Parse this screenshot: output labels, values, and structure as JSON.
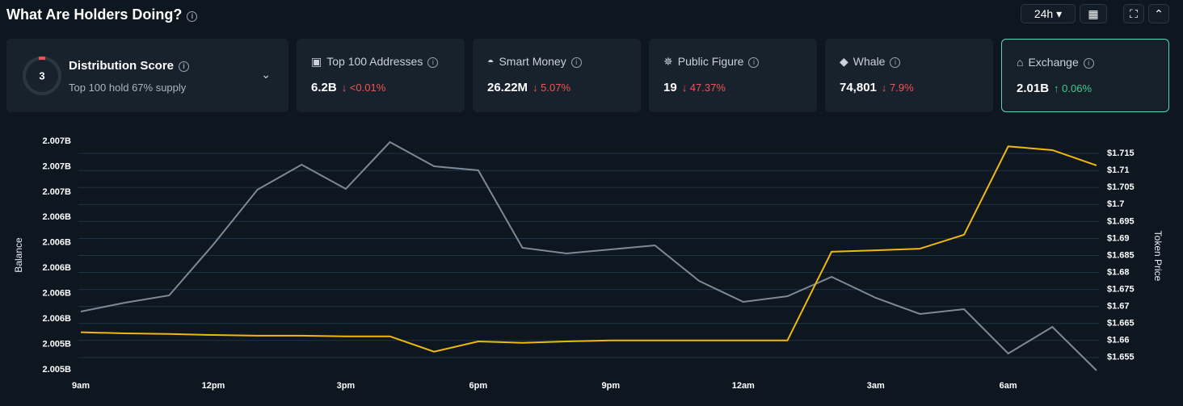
{
  "header": {
    "title": "What Are Holders Doing?",
    "range": "24h"
  },
  "distribution": {
    "score": "3",
    "title": "Distribution Score",
    "subtitle": "Top 100 hold 67% supply"
  },
  "cards": [
    {
      "icon": "▣",
      "label": "Top 100 Addresses",
      "value": "6.2B",
      "change": "↓ <0.01%",
      "trend": "down"
    },
    {
      "icon": "◓",
      "label": "Smart Money",
      "value": "26.22M",
      "change": "↓ 5.07%",
      "trend": "down"
    },
    {
      "icon": "✵",
      "label": "Public Figure",
      "value": "19",
      "change": "↓ 47.37%",
      "trend": "down"
    },
    {
      "icon": "◆",
      "label": "Whale",
      "value": "74,801",
      "change": "↓ 7.9%",
      "trend": "down"
    },
    {
      "icon": "⌂",
      "label": "Exchange",
      "value": "2.01B",
      "change": "↑ 0.06%",
      "trend": "up",
      "selected": true
    }
  ],
  "chart_data": {
    "type": "line",
    "y_label": "Balance",
    "y2_label": "Token Price",
    "categories": [
      "9am",
      null,
      null,
      "12pm",
      null,
      null,
      "3pm",
      null,
      null,
      "6pm",
      null,
      null,
      "9pm",
      null,
      null,
      "12am",
      null,
      null,
      "3am",
      null,
      null,
      "6am",
      null,
      null
    ],
    "series": [
      {
        "name": "Balance",
        "color": "#7d8a96",
        "values": [
          2005708000,
          2005777900,
          2005835200,
          2006235900,
          2006668400,
          2006865500,
          2006674700,
          2007043600,
          2006852800,
          2006821000,
          2006210400,
          2006165900,
          2006197700,
          2006229500,
          2005949600,
          2005784300,
          2005828800,
          2005981400,
          2005816100,
          2005688900,
          2005727000,
          2005377200,
          2005587100,
          2005243600
        ]
      },
      {
        "name": "Token Price",
        "color": "#f0b90b",
        "axis": "y2",
        "values": [
          1.6624,
          1.6621,
          1.6619,
          1.6616,
          1.6614,
          1.6614,
          1.6612,
          1.6612,
          1.6567,
          1.6597,
          1.6593,
          1.6597,
          1.66,
          1.66,
          1.66,
          1.66,
          1.66,
          1.6861,
          1.6865,
          1.687,
          1.6911,
          1.7171,
          1.716,
          1.7115
        ]
      }
    ],
    "ylim": [
      2005250000,
      2007050000
    ],
    "yticks": [
      {
        "value": 2007050000,
        "label": "2.007B"
      },
      {
        "value": 2006850000,
        "label": "2.007B"
      },
      {
        "value": 2006650000,
        "label": "2.007B"
      },
      {
        "value": 2006450000,
        "label": "2.006B"
      },
      {
        "value": 2006250000,
        "label": "2.006B"
      },
      {
        "value": 2006050000,
        "label": "2.006B"
      },
      {
        "value": 2005850000,
        "label": "2.006B"
      },
      {
        "value": 2005650000,
        "label": "2.006B"
      },
      {
        "value": 2005450000,
        "label": "2.005B"
      },
      {
        "value": 2005250000,
        "label": "2.005B"
      }
    ],
    "y2lim": [
      1.6514,
      1.7186
    ],
    "y2ticks": [
      {
        "value": 1.715,
        "label": "$1.715"
      },
      {
        "value": 1.71,
        "label": "$1.71"
      },
      {
        "value": 1.705,
        "label": "$1.705"
      },
      {
        "value": 1.7,
        "label": "$1.7"
      },
      {
        "value": 1.695,
        "label": "$1.695"
      },
      {
        "value": 1.69,
        "label": "$1.69"
      },
      {
        "value": 1.685,
        "label": "$1.685"
      },
      {
        "value": 1.68,
        "label": "$1.68"
      },
      {
        "value": 1.675,
        "label": "$1.675"
      },
      {
        "value": 1.67,
        "label": "$1.67"
      },
      {
        "value": 1.665,
        "label": "$1.665"
      },
      {
        "value": 1.66,
        "label": "$1.66"
      },
      {
        "value": 1.655,
        "label": "$1.655"
      }
    ],
    "grid": true
  }
}
